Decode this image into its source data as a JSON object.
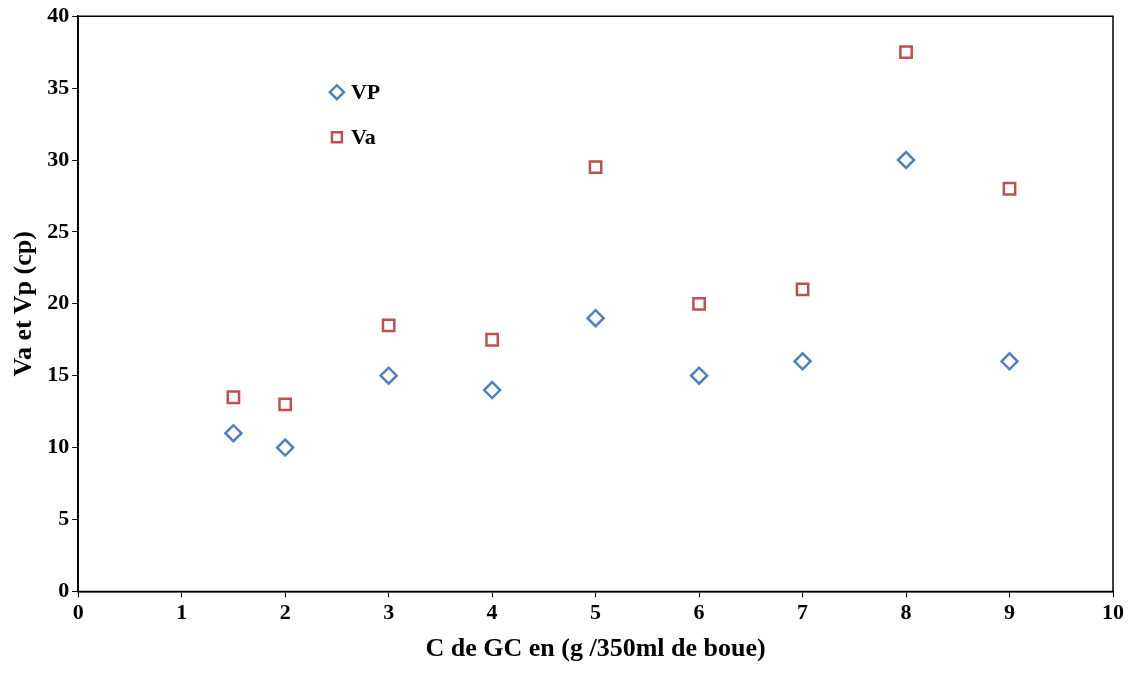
{
  "chart_data": {
    "type": "scatter",
    "xlabel": "C de GC en (g /350ml de boue)",
    "ylabel": "Va et Vp (cp)",
    "x": [
      1.5,
      2,
      3,
      4,
      5,
      6,
      7,
      8,
      9
    ],
    "series": [
      {
        "name": "VP",
        "color": "#4f81bd",
        "marker": "diamond",
        "values": [
          11,
          10,
          15,
          14,
          19,
          15,
          16,
          30,
          16
        ]
      },
      {
        "name": "Va",
        "color": "#c0504d",
        "marker": "square",
        "values": [
          13.5,
          13,
          18.5,
          17.5,
          29.5,
          20,
          21,
          37.5,
          28
        ]
      }
    ],
    "xlim": [
      0,
      10
    ],
    "xticks": [
      0,
      1,
      2,
      3,
      4,
      5,
      6,
      7,
      8,
      9,
      10
    ],
    "ylim": [
      0,
      40
    ],
    "yticks": [
      0,
      5,
      10,
      15,
      20,
      25,
      30,
      35,
      40
    ],
    "grid": false,
    "legend": "top left"
  }
}
